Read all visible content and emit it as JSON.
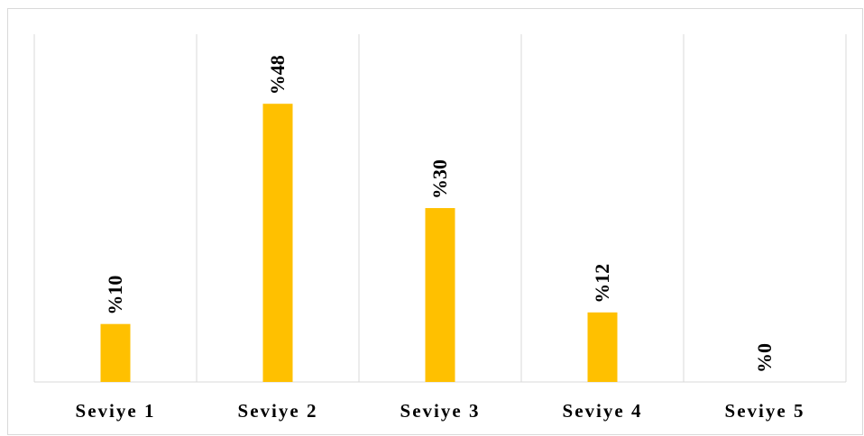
{
  "chart_data": {
    "type": "bar",
    "categories": [
      "Seviye 1",
      "Seviye 2",
      "Seviye 3",
      "Seviye 4",
      "Seviye 5"
    ],
    "values": [
      10,
      48,
      30,
      12,
      0
    ],
    "data_labels": [
      "%10",
      "%48",
      "%30",
      "%12",
      "%0"
    ],
    "title": "",
    "xlabel": "",
    "ylabel": "",
    "ylim": [
      0,
      60
    ],
    "grid": "vertical category separators",
    "legend": "none",
    "bar_color": "#FFC000",
    "gridline_color": "#d9d9d9"
  }
}
